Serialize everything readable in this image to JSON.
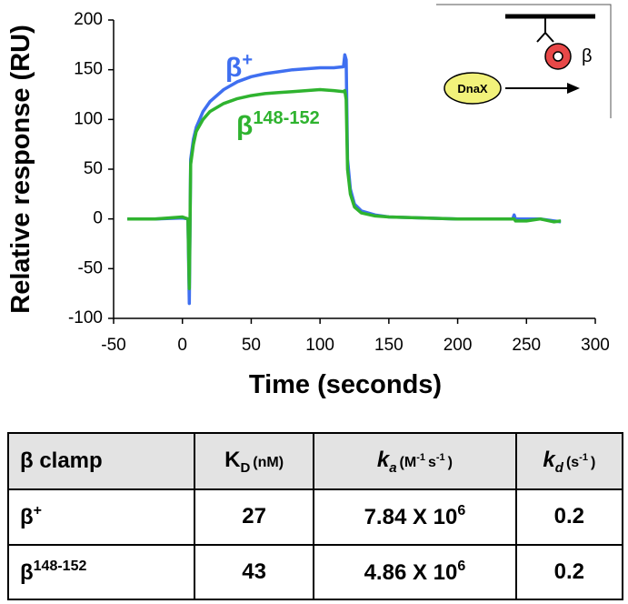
{
  "chart_data": {
    "type": "line",
    "xlabel": "Time (seconds)",
    "ylabel": "Relative response (RU)",
    "xlim": [
      -50,
      300
    ],
    "xticks": [
      -50,
      0,
      50,
      100,
      150,
      200,
      250,
      300
    ],
    "ylim": [
      -100,
      200
    ],
    "yticks": [
      -100,
      -50,
      0,
      50,
      100,
      150,
      200
    ],
    "grid": false,
    "x": [
      -40,
      -20,
      0,
      4,
      5,
      6,
      8,
      10,
      15,
      20,
      30,
      40,
      50,
      60,
      70,
      80,
      90,
      100,
      110,
      117,
      118,
      119,
      120,
      122,
      125,
      130,
      140,
      150,
      175,
      200,
      225,
      240,
      241,
      242,
      250,
      260,
      270,
      275
    ],
    "series": [
      {
        "color": "#3f6ff0",
        "values": [
          0,
          0,
          1,
          0,
          -85,
          60,
          80,
          92,
          108,
          118,
          130,
          138,
          143,
          146,
          148,
          150,
          151,
          152,
          152,
          153,
          165,
          160,
          60,
          30,
          15,
          8,
          4,
          2,
          1,
          0,
          0,
          0,
          4,
          0,
          0,
          0,
          -2,
          -3
        ]
      },
      {
        "color": "#2fb32f",
        "values": [
          0,
          0,
          2,
          0,
          -70,
          55,
          75,
          88,
          100,
          108,
          116,
          121,
          124,
          126,
          127,
          128,
          129,
          130,
          129,
          128,
          129,
          120,
          50,
          25,
          12,
          6,
          3,
          2,
          1,
          0,
          0,
          0,
          0,
          -2,
          -2,
          0,
          -3,
          -2
        ]
      }
    ],
    "annotations": [
      {
        "text": "β",
        "sup": "+",
        "color": "#3f6ff0"
      },
      {
        "text": "β",
        "sup": "148-152",
        "color": "#2fb32f"
      }
    ]
  },
  "inset": {
    "protein": "DnaX",
    "clamp": "β"
  },
  "table": {
    "header": [
      [
        {
          "t": "β clamp"
        }
      ],
      [
        {
          "t": "K"
        },
        {
          "sub": "D"
        },
        {
          "small": "(nM)"
        }
      ],
      [
        {
          "i": "k"
        },
        {
          "isub": "a"
        },
        {
          "small": "(M"
        },
        {
          "smallsup": "-1"
        },
        {
          "small": "s"
        },
        {
          "smallsup": "-1"
        },
        {
          "small": ")"
        }
      ],
      [
        {
          "i": "k"
        },
        {
          "isub": "d"
        },
        {
          "small": "(s"
        },
        {
          "smallsup": "-1"
        },
        {
          "small": ")"
        }
      ]
    ],
    "rows": [
      [
        [
          {
            "t": "β"
          },
          {
            "sup": "+"
          }
        ],
        [
          {
            "t": "27"
          }
        ],
        [
          {
            "t": "7.84 X 10"
          },
          {
            "sup": "6"
          }
        ],
        [
          {
            "t": "0.2"
          }
        ]
      ],
      [
        [
          {
            "t": "β"
          },
          {
            "sup": "148-152"
          }
        ],
        [
          {
            "t": "43"
          }
        ],
        [
          {
            "t": "4.86 X 10"
          },
          {
            "sup": "6"
          }
        ],
        [
          {
            "t": "0.2"
          }
        ]
      ]
    ]
  }
}
